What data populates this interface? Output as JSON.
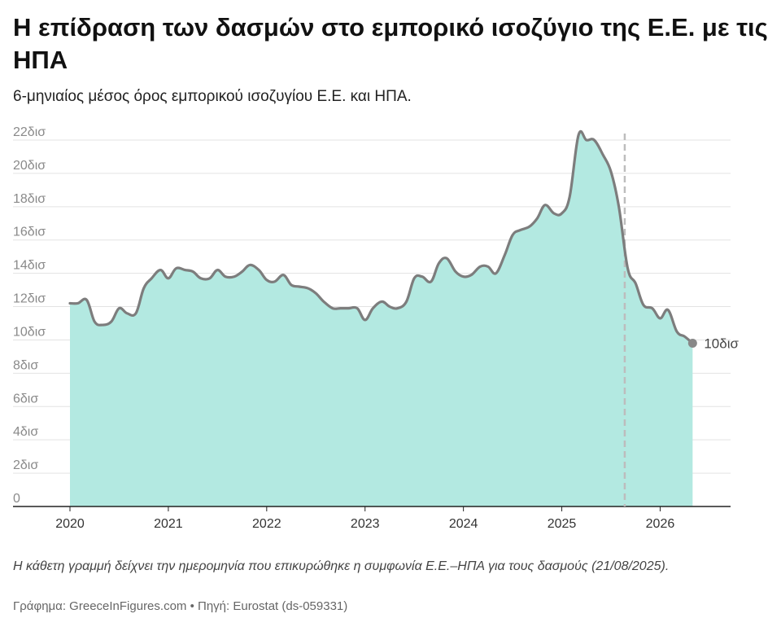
{
  "title": "Η επίδραση των δασμών στο εμπορικό ισοζύγιο της Ε.Ε. με τις ΗΠΑ",
  "subtitle": "6-μηνιαίος μέσος όρος εμπορικού ισοζυγίου Ε.Ε. και ΗΠΑ.",
  "note": "Η κάθετη γραμμή δείχνει την ημερομηνία που επικυρώθηκε η συμφωνία Ε.Ε.–ΗΠΑ για τους δασμούς (21/08/2025).",
  "source": "Γράφημα: GreeceInFigures.com • Πηγή: Eurostat (ds-059331)",
  "chart_data": {
    "type": "area",
    "unit": "δισ",
    "ylim": [
      0,
      22
    ],
    "xlim": [
      2020.0,
      2026.6
    ],
    "y_ticks": [
      {
        "value": 0,
        "label": "0"
      },
      {
        "value": 2,
        "label": "2δισ"
      },
      {
        "value": 4,
        "label": "4δισ"
      },
      {
        "value": 6,
        "label": "6δισ"
      },
      {
        "value": 8,
        "label": "8δισ"
      },
      {
        "value": 10,
        "label": "10δισ"
      },
      {
        "value": 12,
        "label": "12δισ"
      },
      {
        "value": 14,
        "label": "14δισ"
      },
      {
        "value": 16,
        "label": "16δισ"
      },
      {
        "value": 18,
        "label": "18δισ"
      },
      {
        "value": 20,
        "label": "20δισ"
      },
      {
        "value": 22,
        "label": "22δισ"
      }
    ],
    "x_ticks": [
      {
        "value": 2020.0,
        "label": "2020"
      },
      {
        "value": 2021.0,
        "label": "2021"
      },
      {
        "value": 2022.0,
        "label": "2022"
      },
      {
        "value": 2023.0,
        "label": "2023"
      },
      {
        "value": 2024.0,
        "label": "2024"
      },
      {
        "value": 2025.0,
        "label": "2025"
      },
      {
        "value": 2026.0,
        "label": "2026"
      }
    ],
    "grid": true,
    "fill_color": "#b3e9e1",
    "line_color": "#7d7d7d",
    "marker_line": {
      "x": 2025.64,
      "label": "21/08/2025",
      "color": "#bdbdbd"
    },
    "end_label": "10δισ",
    "x": [
      2020.0,
      2020.08,
      2020.17,
      2020.25,
      2020.33,
      2020.42,
      2020.5,
      2020.58,
      2020.67,
      2020.75,
      2020.83,
      2020.92,
      2021.0,
      2021.08,
      2021.17,
      2021.25,
      2021.33,
      2021.42,
      2021.5,
      2021.58,
      2021.67,
      2021.75,
      2021.83,
      2021.92,
      2022.0,
      2022.08,
      2022.17,
      2022.25,
      2022.33,
      2022.42,
      2022.5,
      2022.58,
      2022.67,
      2022.75,
      2022.83,
      2022.92,
      2023.0,
      2023.08,
      2023.17,
      2023.25,
      2023.33,
      2023.42,
      2023.5,
      2023.58,
      2023.67,
      2023.75,
      2023.83,
      2023.92,
      2024.0,
      2024.08,
      2024.17,
      2024.25,
      2024.33,
      2024.42,
      2024.5,
      2024.58,
      2024.67,
      2024.75,
      2024.83,
      2024.92,
      2025.0,
      2025.08,
      2025.17,
      2025.25,
      2025.33,
      2025.42,
      2025.5,
      2025.58,
      2025.67,
      2025.75,
      2025.83,
      2025.92,
      2026.0,
      2026.08,
      2026.17,
      2026.25,
      2026.33
    ],
    "values": [
      12.2,
      12.2,
      12.4,
      11.1,
      10.9,
      11.1,
      11.9,
      11.6,
      11.6,
      13.1,
      13.7,
      14.2,
      13.7,
      14.3,
      14.2,
      14.1,
      13.7,
      13.7,
      14.2,
      13.8,
      13.8,
      14.1,
      14.5,
      14.2,
      13.6,
      13.5,
      13.9,
      13.3,
      13.2,
      13.1,
      12.8,
      12.3,
      11.9,
      11.9,
      11.9,
      11.9,
      11.2,
      11.9,
      12.3,
      12.0,
      11.9,
      12.3,
      13.7,
      13.8,
      13.5,
      14.6,
      14.9,
      14.1,
      13.8,
      13.9,
      14.4,
      14.4,
      14.0,
      15.1,
      16.3,
      16.6,
      16.8,
      17.3,
      18.1,
      17.6,
      17.6,
      18.6,
      22.3,
      22.0,
      22.0,
      21.1,
      20.1,
      18.0,
      14.3,
      13.4,
      12.1,
      11.9,
      11.3,
      11.8,
      10.5,
      10.2,
      9.8
    ]
  }
}
